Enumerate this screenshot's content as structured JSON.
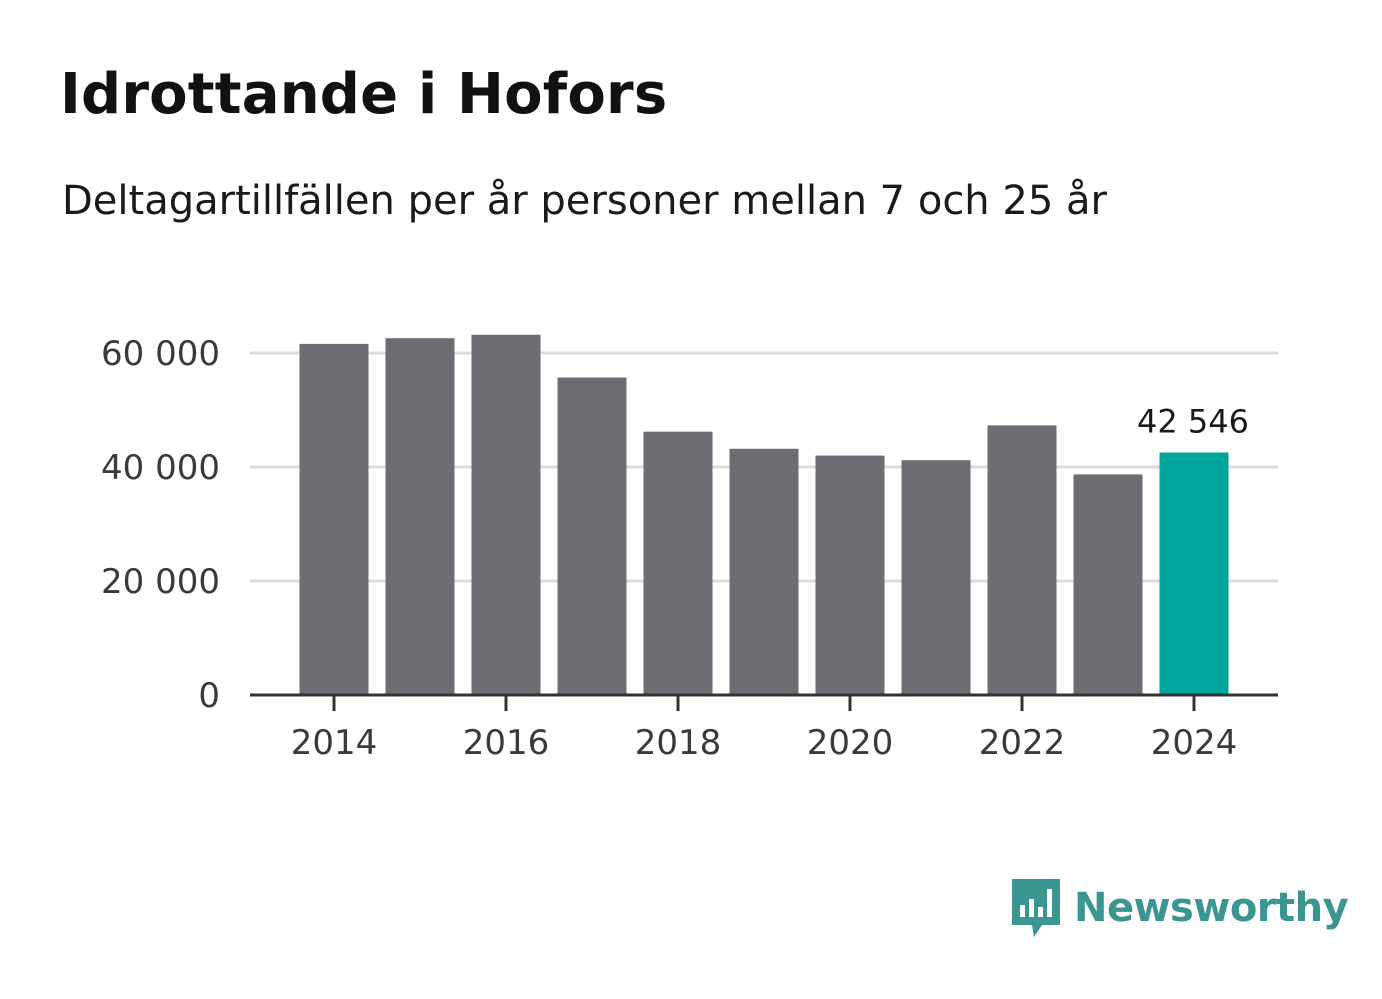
{
  "chart_data": {
    "type": "bar",
    "title": "Idrottande i Hofors",
    "subtitle": "Deltagartillfällen per år personer mellan 7 och 25 år",
    "xlabel": "",
    "ylabel": "",
    "categories": [
      "2014",
      "2015",
      "2016",
      "2017",
      "2018",
      "2019",
      "2020",
      "2021",
      "2022",
      "2023",
      "2024"
    ],
    "values": [
      61600,
      62600,
      63200,
      55700,
      46200,
      43200,
      42000,
      41200,
      47300,
      38700,
      42546
    ],
    "ylim": [
      0,
      65000
    ],
    "y_ticks": [
      0,
      20000,
      40000,
      60000
    ],
    "y_tick_labels": [
      "0",
      "20 000",
      "40 000",
      "60 000"
    ],
    "x_tick_labels": [
      "2014",
      "2016",
      "2018",
      "2020",
      "2022",
      "2024"
    ],
    "highlight": {
      "category": "2024",
      "value_label": "42 546"
    },
    "colors": {
      "bar": "#6e6d73",
      "highlight": "#00a59b",
      "grid": "#dcdcdc",
      "axis": "#333333"
    },
    "grid": true
  },
  "brand": {
    "name": "Newsworthy",
    "icon": "newsworthy-logo-icon",
    "color": "#3b9692"
  }
}
